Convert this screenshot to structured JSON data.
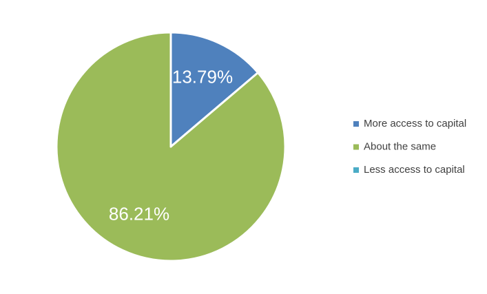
{
  "chart_data": {
    "type": "pie",
    "categories": [
      "More access to capital",
      "About the same",
      "Less access to capital"
    ],
    "values": [
      13.79,
      86.21,
      0
    ],
    "value_labels": [
      "13.79%",
      "86.21%",
      null
    ],
    "colors": [
      "#4f81bd",
      "#9bbb59",
      "#4bacc6"
    ],
    "legend": "right"
  }
}
